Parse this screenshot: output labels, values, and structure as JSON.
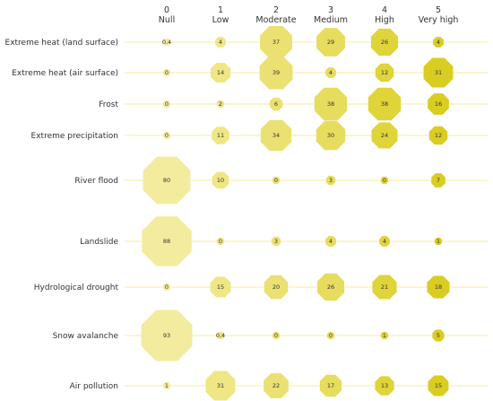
{
  "chart_data": {
    "type": "scatter",
    "title": "",
    "columns": [
      {
        "num": "0",
        "label": "Null"
      },
      {
        "num": "1",
        "label": "Low"
      },
      {
        "num": "2",
        "label": "Moderate"
      },
      {
        "num": "3",
        "label": "Medium"
      },
      {
        "num": "4",
        "label": "High"
      },
      {
        "num": "5",
        "label": "Very high"
      }
    ],
    "rows": [
      {
        "label": "Extreme heat (land surface)",
        "values": [
          0.4,
          4,
          37,
          29,
          26,
          4
        ],
        "texts": [
          "0.4",
          "4",
          "37",
          "29",
          "26",
          "4"
        ]
      },
      {
        "label": "Extreme heat (air surface)",
        "values": [
          0,
          14,
          39,
          4,
          12,
          31
        ],
        "texts": [
          "0",
          "14",
          "39",
          "4",
          "12",
          "31"
        ]
      },
      {
        "label": "Frost",
        "values": [
          0,
          2,
          6,
          38,
          38,
          16
        ],
        "texts": [
          "0",
          "2",
          "6",
          "38",
          "38",
          "16"
        ]
      },
      {
        "label": "Extreme precipitation",
        "values": [
          0,
          11,
          34,
          30,
          24,
          12
        ],
        "texts": [
          "0",
          "11",
          "34",
          "30",
          "24",
          "12"
        ]
      },
      {
        "label": "River flood",
        "values": [
          80,
          10,
          0,
          3,
          0,
          7
        ],
        "texts": [
          "80",
          "10",
          "0",
          "3",
          "0",
          "7"
        ]
      },
      {
        "label": "Landslide",
        "values": [
          88,
          0,
          3,
          4,
          4,
          1
        ],
        "texts": [
          "88",
          "0",
          "3",
          "4",
          "4",
          "1"
        ]
      },
      {
        "label": "Hydrological drought",
        "values": [
          0,
          15,
          20,
          26,
          21,
          18
        ],
        "texts": [
          "0",
          "15",
          "20",
          "26",
          "21",
          "18"
        ]
      },
      {
        "label": "Snow avalanche",
        "values": [
          93,
          0.4,
          0,
          0,
          1,
          5
        ],
        "texts": [
          "93",
          "0.4",
          "0",
          "0",
          "1",
          "5"
        ]
      },
      {
        "label": "Air pollution",
        "values": [
          1,
          31,
          22,
          17,
          13,
          15
        ],
        "texts": [
          "1",
          "31",
          "22",
          "17",
          "13",
          "15"
        ]
      }
    ],
    "column_colors": [
      "#f3ec9e",
      "#efe684",
      "#ebe172",
      "#e6dc5e",
      "#dfd43a",
      "#d9cd22"
    ],
    "gridline_color": "#f4eea0",
    "marker_shape": "octagon"
  }
}
